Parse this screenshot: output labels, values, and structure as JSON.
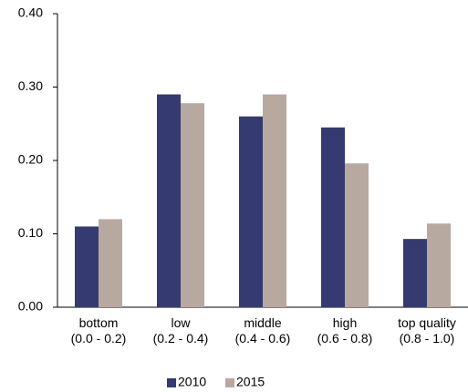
{
  "chart_data": {
    "type": "bar",
    "categories": [
      "bottom\n(0.0 - 0.2)",
      "low\n(0.2 - 0.4)",
      "middle\n(0.4 - 0.6)",
      "high\n(0.6 - 0.8)",
      "top quality\n(0.8 - 1.0)"
    ],
    "series": [
      {
        "name": "2010",
        "color": "#353b71",
        "values": [
          0.11,
          0.29,
          0.26,
          0.245,
          0.093
        ]
      },
      {
        "name": "2015",
        "color": "#b8a9a0",
        "values": [
          0.12,
          0.278,
          0.29,
          0.196,
          0.114
        ]
      }
    ],
    "ylim": [
      0,
      0.4
    ],
    "yticks": [
      {
        "value": 0,
        "label": "0.00"
      },
      {
        "value": 0.1,
        "label": "0.10"
      },
      {
        "value": 0.2,
        "label": "0.20"
      },
      {
        "value": 0.3,
        "label": "0.30"
      },
      {
        "value": 0.4,
        "label": "0.40"
      }
    ],
    "grid": false,
    "legend": "bottom"
  }
}
